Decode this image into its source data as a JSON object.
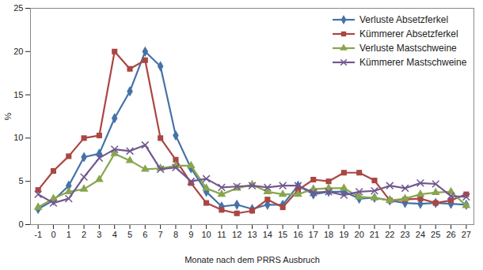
{
  "chart_data": {
    "type": "line",
    "x_label": "Monate nach dem PRRS Ausbruch",
    "y_label": "%",
    "x": [
      -1,
      0,
      1,
      2,
      3,
      4,
      5,
      6,
      7,
      8,
      9,
      10,
      11,
      12,
      13,
      14,
      15,
      16,
      17,
      18,
      19,
      20,
      21,
      22,
      23,
      24,
      25,
      26,
      27
    ],
    "xlim": [
      -1.5,
      27.5
    ],
    "xticks": [
      -1,
      0,
      1,
      2,
      3,
      4,
      5,
      6,
      7,
      8,
      9,
      10,
      11,
      12,
      13,
      14,
      15,
      16,
      17,
      18,
      19,
      20,
      21,
      22,
      23,
      24,
      25,
      26,
      27
    ],
    "ylim": [
      0,
      25
    ],
    "yticks": [
      0,
      5,
      10,
      15,
      20,
      25
    ],
    "grid": false,
    "legend": "top-right",
    "series": [
      {
        "name": "Verluste Absetzferkel",
        "color": "#4572A7",
        "marker": "diamond",
        "values": [
          1.8,
          2.8,
          4.5,
          7.8,
          8.2,
          12.3,
          15.4,
          20.0,
          18.3,
          10.3,
          6.5,
          3.8,
          2.1,
          2.3,
          1.8,
          2.3,
          2.3,
          4.5,
          3.5,
          3.8,
          3.8,
          3.0,
          3.1,
          2.8,
          2.5,
          2.4,
          2.5,
          2.4,
          2.3
        ]
      },
      {
        "name": "Kümmerer Absetzferkel",
        "color": "#AA4643",
        "marker": "square",
        "values": [
          4.0,
          6.2,
          7.9,
          10.0,
          10.3,
          20.0,
          18.0,
          19.0,
          10.0,
          7.5,
          4.8,
          2.5,
          1.7,
          1.3,
          1.6,
          2.9,
          2.0,
          4.0,
          5.2,
          5.0,
          6.0,
          6.0,
          5.1,
          2.8,
          2.9,
          3.0,
          2.5,
          2.8,
          3.5
        ]
      },
      {
        "name": "Verluste Mastschweine",
        "color": "#89A54E",
        "marker": "triangle",
        "values": [
          2.0,
          3.0,
          3.8,
          4.1,
          5.2,
          8.2,
          7.4,
          6.4,
          6.5,
          6.8,
          6.8,
          4.2,
          3.5,
          4.2,
          4.6,
          3.8,
          3.5,
          3.5,
          4.1,
          4.2,
          4.2,
          3.2,
          3.1,
          2.8,
          3.0,
          3.5,
          3.7,
          3.8,
          2.2
        ]
      },
      {
        "name": "Kümmerer Mastschweine",
        "color": "#71588F",
        "marker": "x",
        "values": [
          3.5,
          2.5,
          3.0,
          5.5,
          7.7,
          8.7,
          8.5,
          9.2,
          6.4,
          6.6,
          5.0,
          5.3,
          4.3,
          4.4,
          4.5,
          4.3,
          4.5,
          4.5,
          3.7,
          3.8,
          3.4,
          3.8,
          3.9,
          4.5,
          4.2,
          4.8,
          4.7,
          3.3,
          3.2
        ]
      }
    ]
  }
}
